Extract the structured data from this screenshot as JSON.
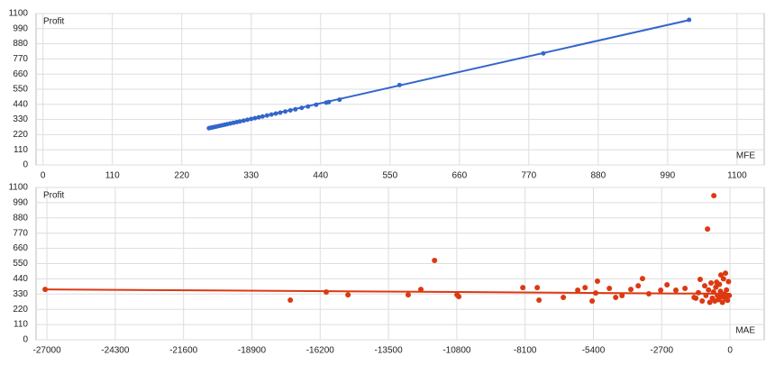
{
  "chart_data": [
    {
      "type": "scatter",
      "y_label": "Profit",
      "x_label": "MFE",
      "color": "#3366cc",
      "grid": true,
      "xlim": [
        -11,
        1143
      ],
      "ylim": [
        0,
        1100
      ],
      "xticks": [
        0,
        110,
        220,
        330,
        440,
        550,
        660,
        770,
        880,
        990,
        1100
      ],
      "yticks": [
        0,
        110,
        220,
        330,
        440,
        550,
        660,
        770,
        880,
        990,
        1100
      ],
      "x": [
        263,
        265,
        268,
        270,
        273,
        276,
        280,
        284,
        288,
        292,
        297,
        302,
        307,
        312,
        318,
        324,
        330,
        336,
        342,
        348,
        355,
        362,
        369,
        376,
        384,
        392,
        400,
        410,
        420,
        433,
        449,
        453,
        470,
        565,
        793,
        1024
      ],
      "values": [
        267,
        269,
        272,
        274,
        277,
        280,
        284,
        288,
        292,
        296,
        301,
        306,
        311,
        316,
        322,
        328,
        334,
        340,
        346,
        352,
        359,
        366,
        373,
        380,
        388,
        396,
        404,
        414,
        424,
        437,
        453,
        457,
        474,
        580,
        810,
        1054
      ],
      "trendline": {
        "x": [
          263,
          1024
        ],
        "y": [
          265,
          1052
        ]
      }
    },
    {
      "type": "scatter",
      "y_label": "Profit",
      "x_label": "MAE",
      "color": "#dc3912",
      "grid": true,
      "xlim": [
        -27430,
        1350
      ],
      "ylim": [
        0,
        1100
      ],
      "xticks": [
        -27000,
        -24300,
        -21600,
        -18900,
        -16200,
        -13500,
        -10800,
        -8100,
        -5400,
        -2700,
        0
      ],
      "yticks": [
        0,
        110,
        220,
        330,
        440,
        550,
        660,
        770,
        880,
        990,
        1100
      ],
      "x": [
        -27070,
        -17380,
        -15960,
        -15100,
        -12720,
        -12220,
        -11680,
        -10790,
        -10720,
        -8190,
        -7620,
        -7550,
        -6590,
        -6020,
        -5730,
        -5450,
        -5310,
        -5240,
        -4770,
        -4520,
        -4270,
        -3920,
        -3630,
        -3460,
        -3210,
        -2740,
        -2490,
        -2140,
        -1780,
        -1420,
        -1180,
        -890,
        -640,
        -530,
        -360,
        -180,
        -1350,
        -1250,
        -1100,
        -1000,
        -950,
        -850,
        -800,
        -750,
        -700,
        -650,
        -600,
        -560,
        -500,
        -460,
        -420,
        -380,
        -340,
        -300,
        -260,
        -220,
        -180,
        -140,
        -100,
        -60,
        -30
      ],
      "values": [
        364,
        286,
        345,
        325,
        325,
        364,
        573,
        325,
        312,
        377,
        377,
        286,
        306,
        358,
        377,
        280,
        338,
        423,
        371,
        306,
        319,
        364,
        390,
        442,
        332,
        358,
        397,
        358,
        371,
        306,
        436,
        800,
        1041,
        416,
        468,
        481,
        300,
        340,
        280,
        390,
        320,
        360,
        270,
        410,
        300,
        345,
        280,
        380,
        320,
        290,
        400,
        350,
        310,
        270,
        440,
        330,
        300,
        360,
        285,
        420,
        320
      ],
      "trendline": {
        "x": [
          -27070,
          0
        ],
        "y": [
          364,
          332
        ]
      }
    }
  ]
}
